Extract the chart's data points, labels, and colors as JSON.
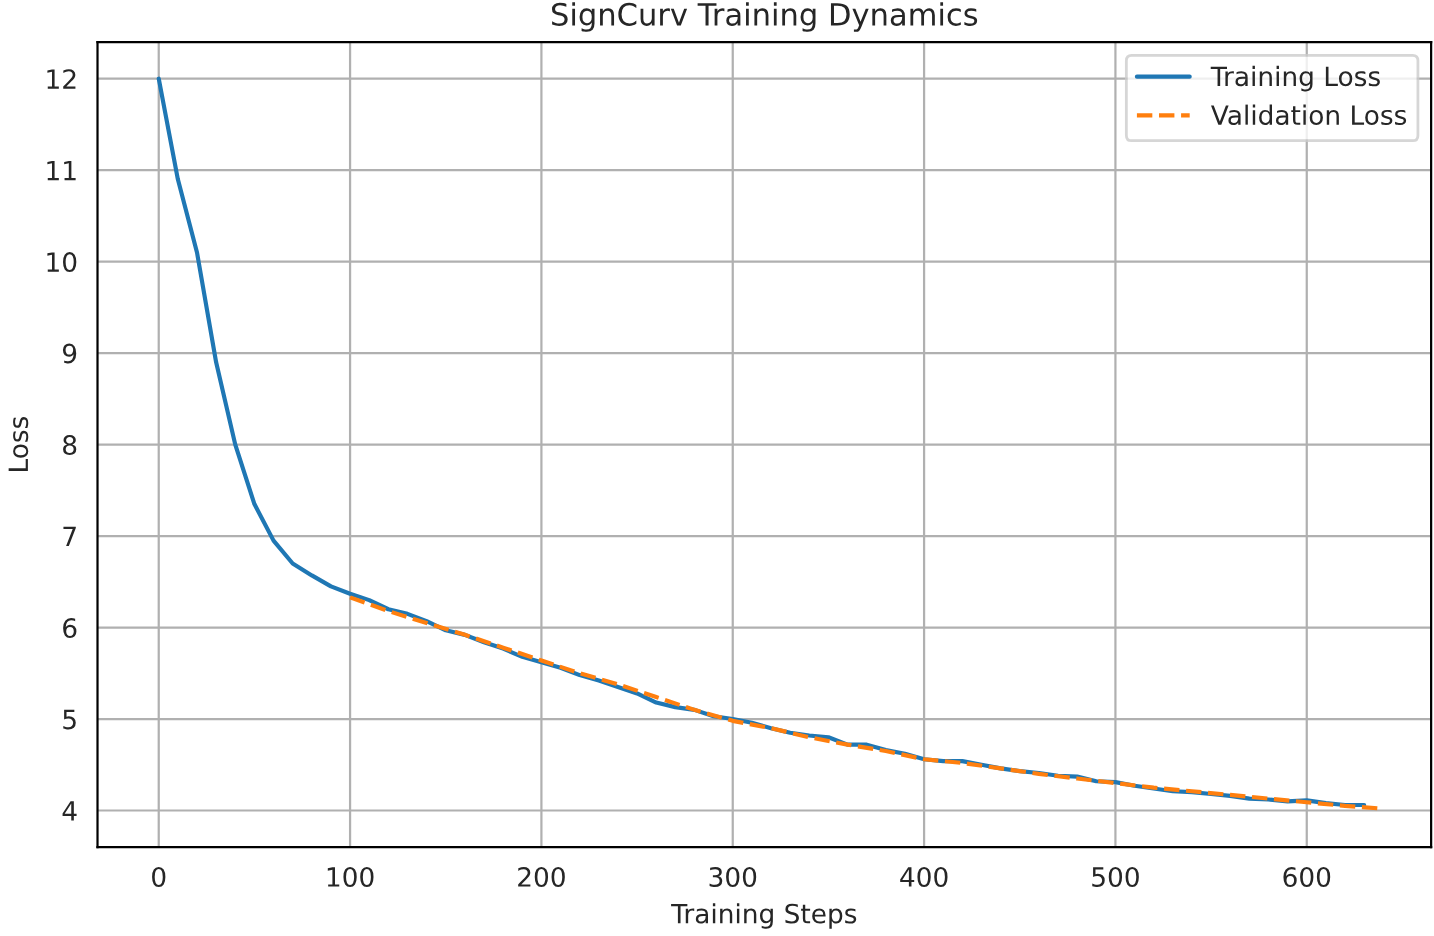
{
  "chart_data": {
    "type": "line",
    "title": "SignCurv Training Dynamics",
    "xlabel": "Training Steps",
    "ylabel": "Loss",
    "series": [
      {
        "name": "Training Loss",
        "color": "#1f77b4",
        "line_style": "solid",
        "x": [
          0,
          10,
          20,
          30,
          40,
          50,
          60,
          70,
          80,
          90,
          100,
          110,
          120,
          130,
          140,
          150,
          160,
          170,
          180,
          190,
          200,
          210,
          220,
          230,
          240,
          250,
          260,
          270,
          280,
          290,
          300,
          310,
          320,
          330,
          340,
          350,
          360,
          370,
          380,
          390,
          400,
          410,
          420,
          430,
          440,
          450,
          460,
          470,
          480,
          490,
          500,
          510,
          520,
          530,
          540,
          550,
          560,
          570,
          580,
          590,
          600,
          610,
          620,
          630
        ],
        "values": [
          12,
          10.9,
          10.1,
          8.9,
          8.0,
          7.35,
          6.95,
          6.7,
          6.57,
          6.45,
          6.37,
          6.3,
          6.2,
          6.15,
          6.07,
          5.97,
          5.92,
          5.84,
          5.77,
          5.68,
          5.62,
          5.56,
          5.48,
          5.42,
          5.35,
          5.28,
          5.18,
          5.13,
          5.1,
          5.03,
          5.0,
          4.96,
          4.9,
          4.85,
          4.82,
          4.8,
          4.72,
          4.72,
          4.66,
          4.62,
          4.56,
          4.54,
          4.54,
          4.5,
          4.46,
          4.43,
          4.41,
          4.38,
          4.37,
          4.32,
          4.31,
          4.27,
          4.24,
          4.21,
          4.2,
          4.18,
          4.16,
          4.13,
          4.12,
          4.1,
          4.11,
          4.08,
          4.06,
          4.06
        ]
      },
      {
        "name": "Validation Loss",
        "color": "#ff7f0e",
        "line_style": "dashed",
        "x": [
          100,
          120,
          140,
          160,
          180,
          200,
          220,
          240,
          260,
          280,
          300,
          320,
          340,
          360,
          380,
          400,
          420,
          440,
          460,
          480,
          500,
          520,
          540,
          560,
          580,
          600,
          620,
          640
        ],
        "values": [
          6.33,
          6.18,
          6.05,
          5.92,
          5.78,
          5.64,
          5.5,
          5.38,
          5.24,
          5.1,
          4.98,
          4.9,
          4.8,
          4.72,
          4.65,
          4.56,
          4.52,
          4.46,
          4.4,
          4.35,
          4.3,
          4.25,
          4.21,
          4.17,
          4.13,
          4.09,
          4.05,
          4.02
        ]
      }
    ],
    "xlim": [
      -32,
      665
    ],
    "ylim": [
      3.6,
      12.4
    ],
    "xticks": [
      0,
      100,
      200,
      300,
      400,
      500,
      600
    ],
    "yticks": [
      4,
      5,
      6,
      7,
      8,
      9,
      10,
      11,
      12
    ],
    "grid": true,
    "legend": "top right"
  }
}
